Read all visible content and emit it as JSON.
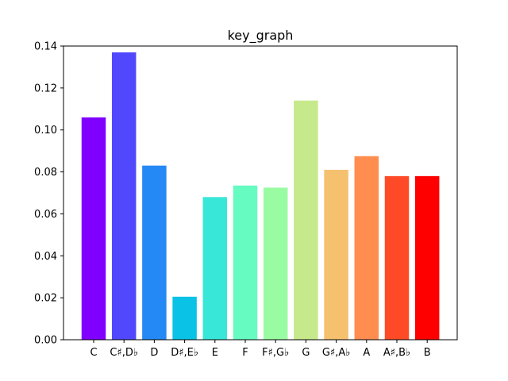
{
  "chart_data": {
    "type": "bar",
    "title": "key_graph",
    "xlabel": "",
    "ylabel": "",
    "categories": [
      "C",
      "C♯,D♭",
      "D",
      "D♯,E♭",
      "E",
      "F",
      "F♯,G♭",
      "G",
      "G♯,A♭",
      "A",
      "A♯,B♭",
      "B"
    ],
    "values": [
      0.106,
      0.137,
      0.083,
      0.0205,
      0.068,
      0.0735,
      0.0725,
      0.114,
      0.081,
      0.0875,
      0.078,
      0.078
    ],
    "colors": [
      "#8000ff",
      "#5148fe",
      "#2489f5",
      "#0ac2e6",
      "#38e7d8",
      "#66fbc1",
      "#9afca2",
      "#c6e98b",
      "#f5c16f",
      "#ff8d4f",
      "#ff4a28",
      "#ff0000"
    ],
    "ylim": [
      0,
      0.14
    ],
    "yticks": [
      "0.00",
      "0.02",
      "0.04",
      "0.06",
      "0.08",
      "0.10",
      "0.12",
      "0.14"
    ],
    "grid": false,
    "legend": "none"
  }
}
